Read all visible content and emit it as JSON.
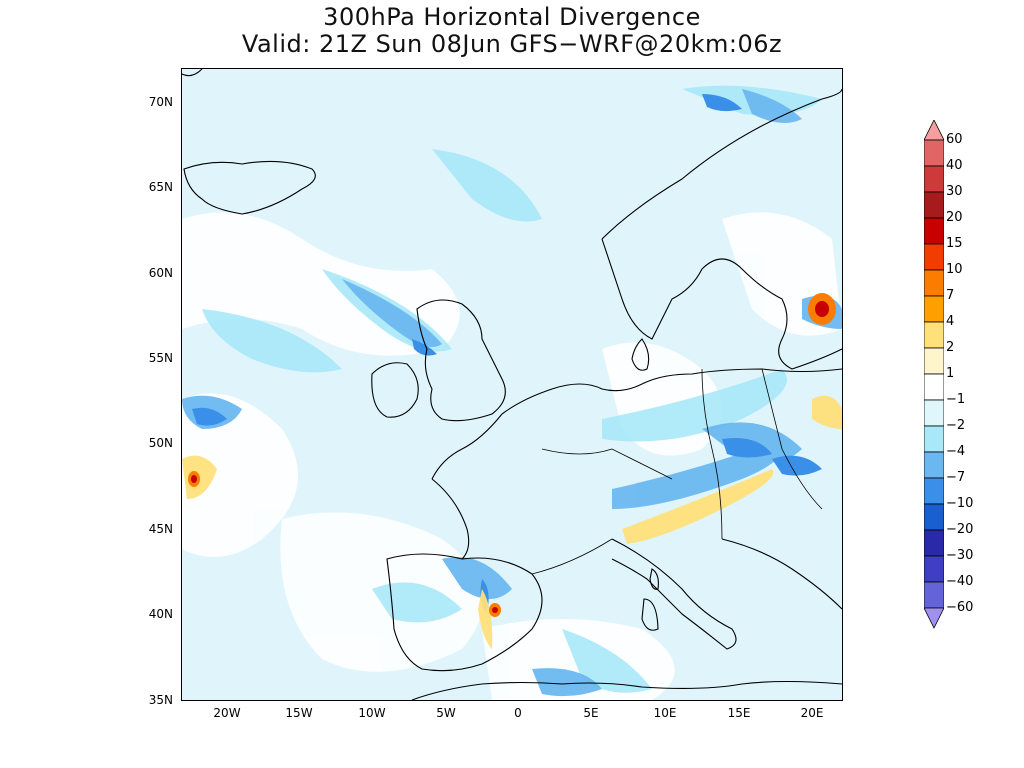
{
  "title": {
    "line1": "300hPa Horizontal Divergence",
    "line2": "Valid: 21Z Sun 08Jun GFS−WRF@20km:06z"
  },
  "axes": {
    "lat_labels": [
      "70N",
      "65N",
      "60N",
      "55N",
      "50N",
      "45N",
      "40N",
      "35N"
    ],
    "lon_labels": [
      "20W",
      "15W",
      "10W",
      "5W",
      "0",
      "5E",
      "10E",
      "15E",
      "20E"
    ]
  },
  "colorbar": {
    "labels": [
      "60",
      "40",
      "30",
      "20",
      "15",
      "10",
      "7",
      "4",
      "2",
      "1",
      "−1",
      "−2",
      "−4",
      "−7",
      "−10",
      "−20",
      "−30",
      "−40",
      "−60"
    ],
    "colors": [
      "#f5a0a0",
      "#e06666",
      "#cc3a3a",
      "#a61c1c",
      "#c80000",
      "#f23c00",
      "#fa7d00",
      "#ffa000",
      "#ffe07a",
      "#fff5cc",
      "#ffffff",
      "#dff6fb",
      "#a8e8f8",
      "#6bb8f0",
      "#3a90e8",
      "#1a5fd0",
      "#2a2aa8",
      "#3f3fc4",
      "#6464d8",
      "#a090f0"
    ]
  }
}
